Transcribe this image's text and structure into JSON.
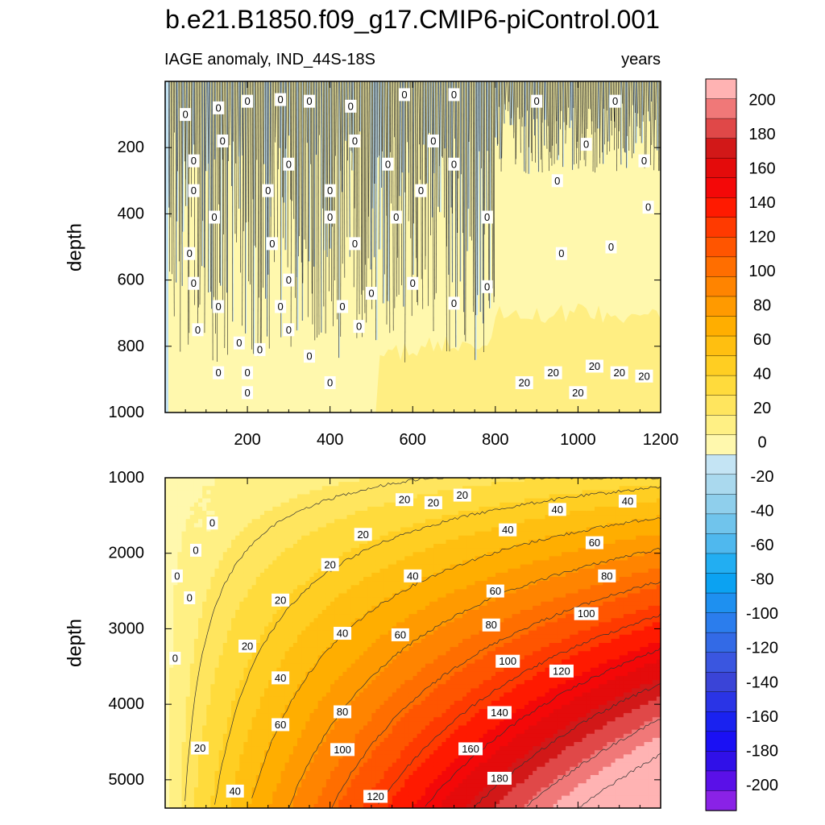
{
  "chart_data": {
    "type": "heatmap",
    "title": "b.e21.B1850.f09_g17.CMIP6-piControl.001",
    "subtitle_left": "IAGE anomaly, IND_44S-18S",
    "subtitle_right": "years",
    "panels": [
      {
        "name": "upper",
        "xlabel": "",
        "ylabel": "depth",
        "xlim": [
          1,
          1200
        ],
        "ylim": [
          1000,
          0
        ],
        "xticks": [
          200,
          400,
          600,
          800,
          1000,
          1200
        ],
        "xtick_labels": [
          "200",
          "400",
          "600",
          "800",
          "1000",
          "1200"
        ],
        "yticks": [
          200,
          400,
          600,
          800,
          1000
        ],
        "ytick_labels": [
          "200",
          "400",
          "600",
          "800",
          "1000"
        ],
        "contour_labels": [
          {
            "text": "0",
            "x": 50,
            "y": 100
          },
          {
            "text": "0",
            "x": 130,
            "y": 80
          },
          {
            "text": "0",
            "x": 200,
            "y": 60
          },
          {
            "text": "0",
            "x": 280,
            "y": 55
          },
          {
            "text": "0",
            "x": 350,
            "y": 60
          },
          {
            "text": "0",
            "x": 450,
            "y": 75
          },
          {
            "text": "0",
            "x": 580,
            "y": 40
          },
          {
            "text": "0",
            "x": 700,
            "y": 40
          },
          {
            "text": "0",
            "x": 900,
            "y": 60
          },
          {
            "text": "0",
            "x": 1090,
            "y": 60
          },
          {
            "text": "0",
            "x": 140,
            "y": 180
          },
          {
            "text": "0",
            "x": 460,
            "y": 180
          },
          {
            "text": "0",
            "x": 650,
            "y": 180
          },
          {
            "text": "0",
            "x": 1020,
            "y": 190
          },
          {
            "text": "0",
            "x": 70,
            "y": 240
          },
          {
            "text": "0",
            "x": 300,
            "y": 250
          },
          {
            "text": "0",
            "x": 540,
            "y": 250
          },
          {
            "text": "0",
            "x": 700,
            "y": 250
          },
          {
            "text": "0",
            "x": 1160,
            "y": 240
          },
          {
            "text": "0",
            "x": 70,
            "y": 330
          },
          {
            "text": "0",
            "x": 250,
            "y": 330
          },
          {
            "text": "0",
            "x": 400,
            "y": 330
          },
          {
            "text": "0",
            "x": 620,
            "y": 330
          },
          {
            "text": "0",
            "x": 950,
            "y": 300
          },
          {
            "text": "0",
            "x": 120,
            "y": 410
          },
          {
            "text": "0",
            "x": 400,
            "y": 410
          },
          {
            "text": "0",
            "x": 560,
            "y": 410
          },
          {
            "text": "0",
            "x": 780,
            "y": 410
          },
          {
            "text": "0",
            "x": 1170,
            "y": 380
          },
          {
            "text": "0",
            "x": 60,
            "y": 520
          },
          {
            "text": "0",
            "x": 260,
            "y": 490
          },
          {
            "text": "0",
            "x": 460,
            "y": 490
          },
          {
            "text": "0",
            "x": 960,
            "y": 520
          },
          {
            "text": "0",
            "x": 1080,
            "y": 500
          },
          {
            "text": "0",
            "x": 70,
            "y": 610
          },
          {
            "text": "0",
            "x": 300,
            "y": 600
          },
          {
            "text": "0",
            "x": 500,
            "y": 640
          },
          {
            "text": "0",
            "x": 600,
            "y": 610
          },
          {
            "text": "0",
            "x": 780,
            "y": 620
          },
          {
            "text": "0",
            "x": 130,
            "y": 680
          },
          {
            "text": "0",
            "x": 280,
            "y": 680
          },
          {
            "text": "0",
            "x": 430,
            "y": 680
          },
          {
            "text": "0",
            "x": 700,
            "y": 670
          },
          {
            "text": "0",
            "x": 80,
            "y": 750
          },
          {
            "text": "0",
            "x": 300,
            "y": 750
          },
          {
            "text": "0",
            "x": 470,
            "y": 740
          },
          {
            "text": "0",
            "x": 180,
            "y": 790
          },
          {
            "text": "0",
            "x": 230,
            "y": 810
          },
          {
            "text": "0",
            "x": 350,
            "y": 830
          },
          {
            "text": "0",
            "x": 130,
            "y": 880
          },
          {
            "text": "0",
            "x": 200,
            "y": 880
          },
          {
            "text": "0",
            "x": 400,
            "y": 910
          },
          {
            "text": "0",
            "x": 200,
            "y": 940
          },
          {
            "text": "20",
            "x": 870,
            "y": 910
          },
          {
            "text": "20",
            "x": 940,
            "y": 880
          },
          {
            "text": "20",
            "x": 1040,
            "y": 860
          },
          {
            "text": "20",
            "x": 1100,
            "y": 880
          },
          {
            "text": "20",
            "x": 1160,
            "y": 890
          },
          {
            "text": "20",
            "x": 1000,
            "y": 940
          }
        ]
      },
      {
        "name": "lower",
        "xlabel": "",
        "ylabel": "depth",
        "xlim": [
          1,
          1200
        ],
        "ylim": [
          5375,
          1000
        ],
        "xticks": [
          200,
          400,
          600,
          800,
          1000,
          1200
        ],
        "yticks": [
          1000,
          2000,
          3000,
          4000,
          5000
        ],
        "ytick_labels": [
          "1000",
          "2000",
          "3000",
          "4000",
          "5000"
        ],
        "contour_labels": [
          {
            "text": "0",
            "x": 115,
            "y": 1600
          },
          {
            "text": "0",
            "x": 75,
            "y": 1960
          },
          {
            "text": "0",
            "x": 30,
            "y": 2300
          },
          {
            "text": "0",
            "x": 60,
            "y": 2590
          },
          {
            "text": "0",
            "x": 25,
            "y": 3390
          },
          {
            "text": "20",
            "x": 580,
            "y": 1290
          },
          {
            "text": "20",
            "x": 650,
            "y": 1330
          },
          {
            "text": "20",
            "x": 720,
            "y": 1230
          },
          {
            "text": "20",
            "x": 480,
            "y": 1750
          },
          {
            "text": "20",
            "x": 400,
            "y": 2150
          },
          {
            "text": "20",
            "x": 280,
            "y": 2620
          },
          {
            "text": "20",
            "x": 200,
            "y": 3230
          },
          {
            "text": "20",
            "x": 85,
            "y": 4580
          },
          {
            "text": "40",
            "x": 950,
            "y": 1420
          },
          {
            "text": "40",
            "x": 830,
            "y": 1690
          },
          {
            "text": "40",
            "x": 1120,
            "y": 1310
          },
          {
            "text": "40",
            "x": 600,
            "y": 2300
          },
          {
            "text": "40",
            "x": 430,
            "y": 3060
          },
          {
            "text": "40",
            "x": 280,
            "y": 3650
          },
          {
            "text": "40",
            "x": 170,
            "y": 5150
          },
          {
            "text": "60",
            "x": 1040,
            "y": 1860
          },
          {
            "text": "60",
            "x": 800,
            "y": 2500
          },
          {
            "text": "60",
            "x": 570,
            "y": 3080
          },
          {
            "text": "60",
            "x": 280,
            "y": 4270
          },
          {
            "text": "80",
            "x": 1070,
            "y": 2300
          },
          {
            "text": "80",
            "x": 790,
            "y": 2950
          },
          {
            "text": "80",
            "x": 430,
            "y": 4100
          },
          {
            "text": "100",
            "x": 1020,
            "y": 2800
          },
          {
            "text": "100",
            "x": 830,
            "y": 3430
          },
          {
            "text": "100",
            "x": 430,
            "y": 4600
          },
          {
            "text": "120",
            "x": 960,
            "y": 3560
          },
          {
            "text": "120",
            "x": 510,
            "y": 5220
          },
          {
            "text": "140",
            "x": 810,
            "y": 4110
          },
          {
            "text": "160",
            "x": 740,
            "y": 4590
          },
          {
            "text": "180",
            "x": 810,
            "y": 4980
          }
        ]
      }
    ],
    "colorbar": {
      "levels": [
        -200,
        -180,
        -160,
        -140,
        -120,
        -100,
        -80,
        -60,
        -40,
        -20,
        0,
        20,
        40,
        60,
        80,
        100,
        120,
        140,
        160,
        180,
        200
      ],
      "tick_labels": [
        "200",
        "180",
        "160",
        "140",
        "120",
        "100",
        "80",
        "60",
        "40",
        "20",
        "0",
        "-20",
        "-40",
        "-60",
        "-80",
        "-100",
        "-120",
        "-140",
        "-160",
        "-180",
        "-200"
      ],
      "colors_top_to_bottom": [
        "#ffb3b3",
        "#f07878",
        "#e04848",
        "#d21818",
        "#e40b0b",
        "#f40808",
        "#ff1a00",
        "#ff3a00",
        "#ff5500",
        "#ff6e00",
        "#ff8400",
        "#ff9a00",
        "#ffae00",
        "#ffbf10",
        "#ffce22",
        "#ffdb3c",
        "#ffe55e",
        "#fff084",
        "#fff8ad",
        "#c4e4f4",
        "#aad9ee",
        "#8fcfec",
        "#70c4ec",
        "#4fb8ee",
        "#22aef2",
        "#0ba2f2",
        "#1e90f0",
        "#2b7ded",
        "#336ae6",
        "#3a56e0",
        "#3a44d7",
        "#2a34e6",
        "#1a22f0",
        "#1a10f4",
        "#3010e8",
        "#5a10e8",
        "#8a22e6"
      ]
    }
  }
}
